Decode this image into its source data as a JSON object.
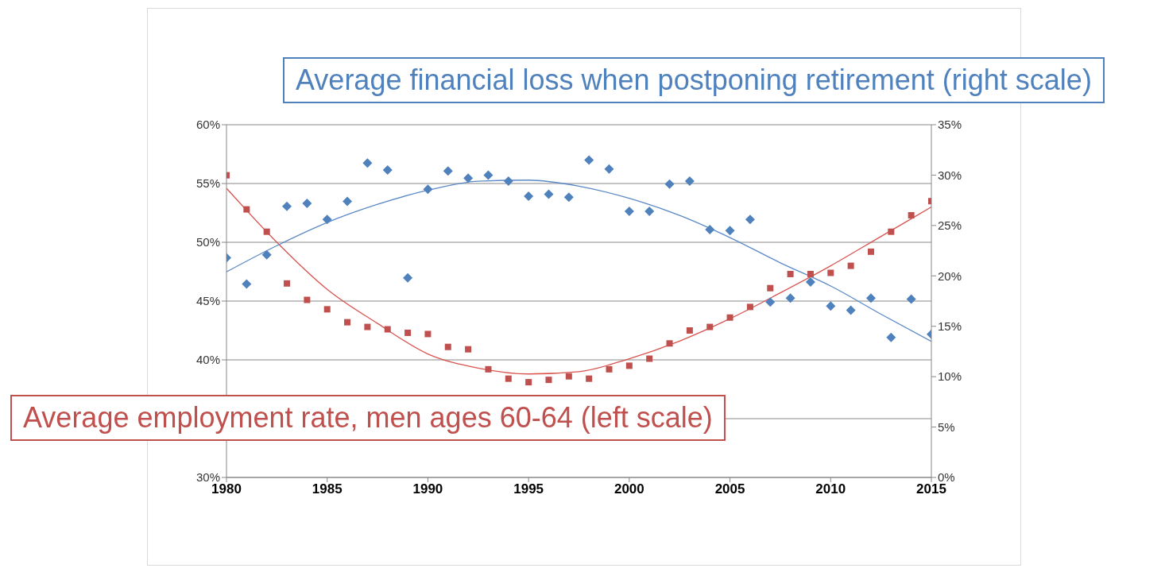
{
  "chart_data": {
    "type": "scatter",
    "xlim": [
      1980,
      2015
    ],
    "xticks": [
      1980,
      1985,
      1990,
      1995,
      2000,
      2005,
      2010,
      2015
    ],
    "ylim": [
      30,
      60
    ],
    "yticks": [
      {
        "value": 30,
        "label": "30%"
      },
      {
        "value": 35,
        "label": null
      },
      {
        "value": 40,
        "label": "40%"
      },
      {
        "value": 45,
        "label": "45%"
      },
      {
        "value": 50,
        "label": "50%"
      },
      {
        "value": 55,
        "label": "55%"
      },
      {
        "value": 60,
        "label": "60%"
      }
    ],
    "y2lim": [
      0,
      35
    ],
    "y2ticks": [
      {
        "value": 0,
        "label": "0%"
      },
      {
        "value": 5,
        "label": "5%"
      },
      {
        "value": 10,
        "label": "10%"
      },
      {
        "value": 15,
        "label": "15%"
      },
      {
        "value": 20,
        "label": "20%"
      },
      {
        "value": 25,
        "label": "25%"
      },
      {
        "value": 30,
        "label": "30%"
      },
      {
        "value": 35,
        "label": "35%"
      }
    ],
    "grid": "y",
    "series": [
      {
        "name": "Average employment rate, men ages 60-64 (left scale)",
        "color": "#c0504d",
        "marker": "square",
        "x": [
          1980,
          1981,
          1982,
          1983,
          1984,
          1985,
          1986,
          1987,
          1988,
          1989,
          1990,
          1991,
          1992,
          1993,
          1994,
          1995,
          1996,
          1997,
          1998,
          1999,
          2000,
          2001,
          2002,
          2003,
          2004,
          2005,
          2006,
          2007,
          2008,
          2009,
          2010,
          2011,
          2012,
          2013,
          2014,
          2015
        ],
        "values": [
          55.7,
          52.8,
          50.9,
          46.5,
          45.1,
          44.3,
          43.2,
          42.8,
          42.6,
          42.3,
          42.2,
          41.1,
          40.9,
          39.2,
          38.4,
          38.1,
          38.3,
          38.6,
          38.4,
          39.2,
          39.5,
          40.1,
          41.4,
          42.5,
          42.8,
          43.6,
          44.5,
          46.1,
          47.3,
          47.3,
          47.4,
          48.0,
          49.2,
          50.9,
          52.3,
          53.5
        ]
      },
      {
        "name": "Average financial loss when postponing retirement (right scale)",
        "color": "#4f81bd",
        "marker": "diamond",
        "axis": "y2",
        "x": [
          1980,
          1981,
          1982,
          1983,
          1984,
          1985,
          1986,
          1987,
          1988,
          1989,
          1990,
          1991,
          1992,
          1993,
          1994,
          1995,
          1996,
          1997,
          1998,
          1999,
          2000,
          2001,
          2002,
          2003,
          2004,
          2005,
          2006,
          2007,
          2008,
          2009,
          2010,
          2011,
          2012,
          2013,
          2014,
          2015
        ],
        "values": [
          21.8,
          19.2,
          22.1,
          26.9,
          27.2,
          25.6,
          27.4,
          31.2,
          30.5,
          19.8,
          28.6,
          30.4,
          29.7,
          30.0,
          29.4,
          27.9,
          28.1,
          27.8,
          31.5,
          30.6,
          26.4,
          26.4,
          29.1,
          29.4,
          24.6,
          24.5,
          25.6,
          17.4,
          17.8,
          19.4,
          17.0,
          16.6,
          17.8,
          13.9,
          17.7,
          14.2
        ]
      },
      {
        "type": "line",
        "color": "#d9534f",
        "marker": "none",
        "line_style": "solid",
        "x": [
          1980,
          1982.5,
          1985,
          1987.5,
          1990,
          1992.5,
          1995,
          1997.5,
          2000,
          2002.5,
          2005,
          2007.5,
          2010,
          2012.5,
          2015
        ],
        "values": [
          54.6,
          50.0,
          46.0,
          43.1,
          40.5,
          39.3,
          38.8,
          39.0,
          40.1,
          41.6,
          43.5,
          45.7,
          48.0,
          50.5,
          53.0
        ]
      },
      {
        "type": "line",
        "color": "#5b8ac6",
        "marker": "none",
        "line_style": "solid",
        "axis": "y2",
        "x": [
          1980,
          1982.5,
          1985,
          1987.5,
          1990,
          1992.5,
          1995,
          1997.5,
          2000,
          2002.5,
          2005,
          2007.5,
          2010,
          2012.5,
          2015
        ],
        "values": [
          20.4,
          23.0,
          25.3,
          27.1,
          28.5,
          29.4,
          29.5,
          28.9,
          27.7,
          26.0,
          23.8,
          21.3,
          19.0,
          16.2,
          13.5
        ]
      }
    ]
  }
}
